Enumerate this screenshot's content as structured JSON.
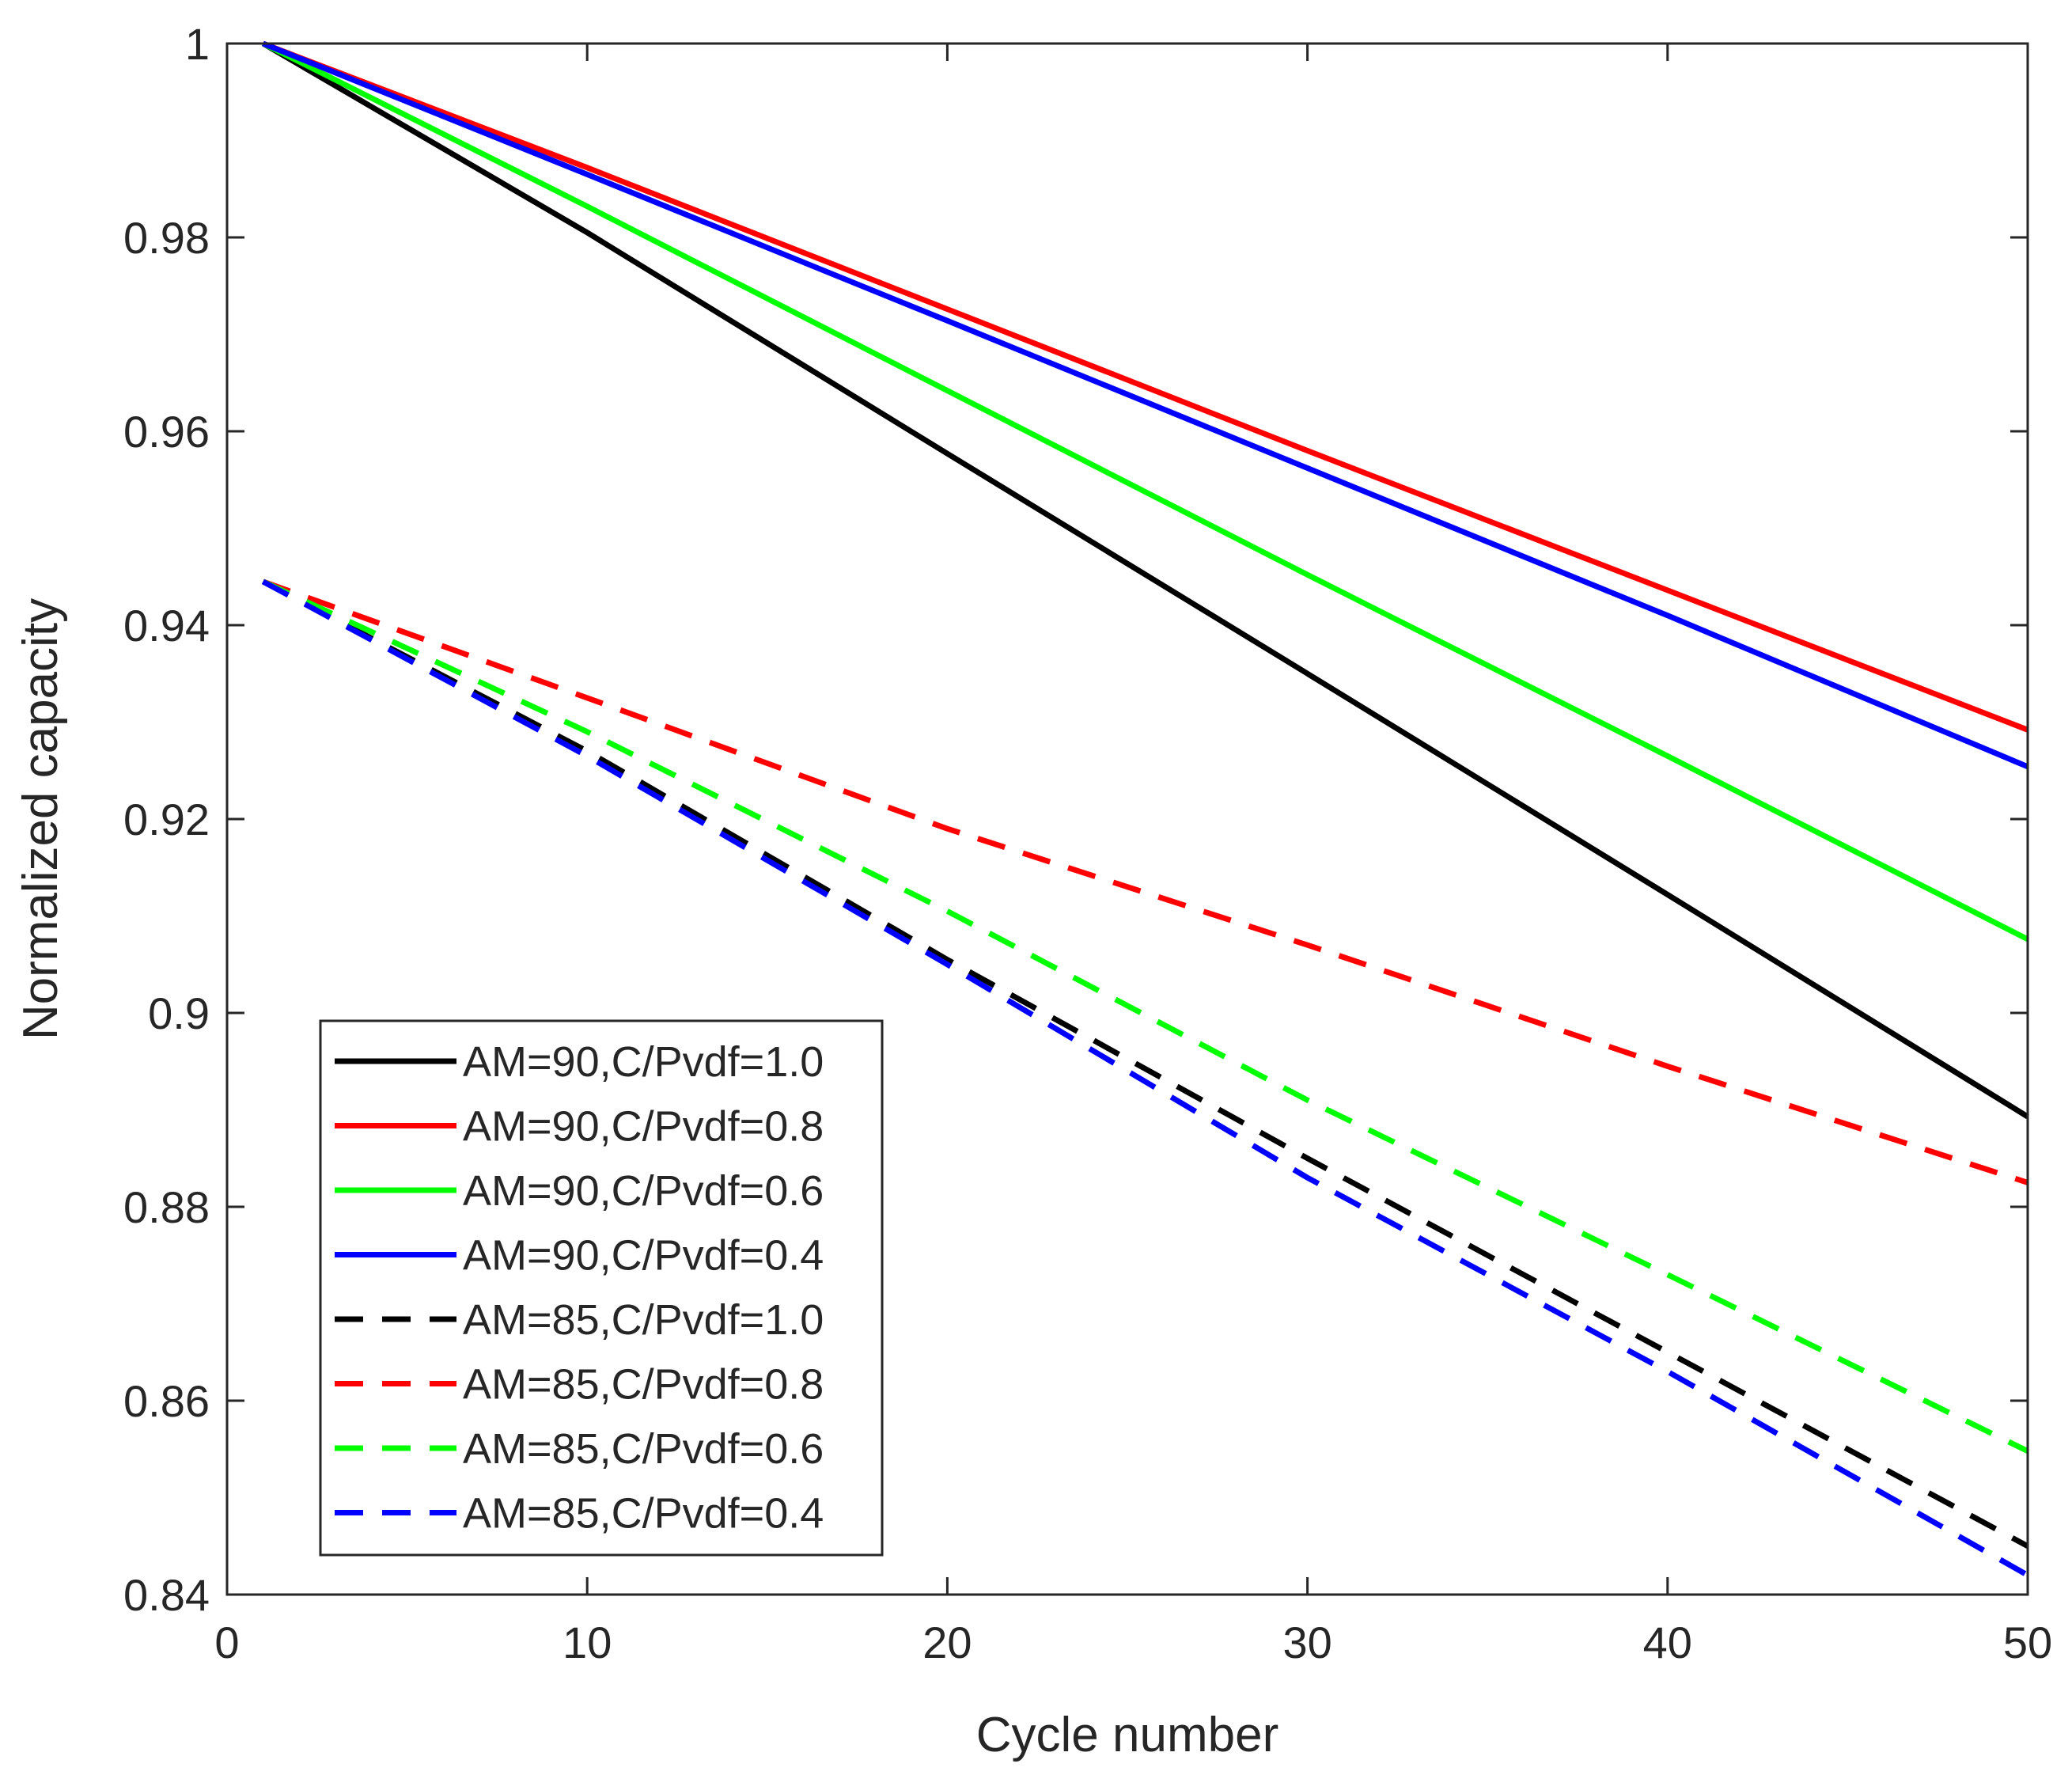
{
  "chart_data": {
    "type": "line",
    "title": "",
    "xlabel": "Cycle number",
    "ylabel": "Normalized capacity",
    "xlim": [
      0,
      50
    ],
    "ylim": [
      0.84,
      1.0
    ],
    "xticks": [
      0,
      10,
      20,
      30,
      40,
      50
    ],
    "xtick_labels": [
      "0",
      "10",
      "20",
      "30",
      "40",
      "50"
    ],
    "yticks": [
      0.84,
      0.86,
      0.88,
      0.9,
      0.92,
      0.94,
      0.96,
      0.98,
      1.0
    ],
    "ytick_labels": [
      "0.84",
      "0.86",
      "0.88",
      "0.9",
      "0.92",
      "0.94",
      "0.96",
      "0.98",
      "1"
    ],
    "grid": false,
    "legend_position": "bottom-left",
    "x": [
      1,
      10,
      20,
      30,
      40,
      50
    ],
    "series": [
      {
        "name": "AM=90,C/Pvdf=1.0",
        "color": "#000000",
        "style": "solid",
        "values": [
          1.0,
          0.9805,
          0.9577,
          0.935,
          0.9122,
          0.8893
        ]
      },
      {
        "name": "AM=90,C/Pvdf=0.8",
        "color": "#ff0000",
        "style": "solid",
        "values": [
          1.0,
          0.9872,
          0.9726,
          0.958,
          0.9436,
          0.9292
        ]
      },
      {
        "name": "AM=90,C/Pvdf=0.6",
        "color": "#00ff00",
        "style": "solid",
        "values": [
          1.0,
          0.9832,
          0.9642,
          0.9452,
          0.9265,
          0.9076
        ]
      },
      {
        "name": "AM=90,C/Pvdf=0.4",
        "color": "#0000ff",
        "style": "solid",
        "values": [
          1.0,
          0.9865,
          0.9714,
          0.9562,
          0.941,
          0.9254
        ]
      },
      {
        "name": "AM=85,C/Pvdf=1.0",
        "color": "#000000",
        "style": "dashed",
        "values": [
          0.9445,
          0.927,
          0.9055,
          0.885,
          0.865,
          0.845
        ]
      },
      {
        "name": "AM=85,C/Pvdf=0.8",
        "color": "#ff0000",
        "style": "dashed",
        "values": [
          0.9445,
          0.9325,
          0.919,
          0.907,
          0.8945,
          0.8825
        ]
      },
      {
        "name": "AM=85,C/Pvdf=0.6",
        "color": "#00ff00",
        "style": "dashed",
        "values": [
          0.9445,
          0.929,
          0.9105,
          0.891,
          0.873,
          0.8548
        ]
      },
      {
        "name": "AM=85,C/Pvdf=0.4",
        "color": "#0000ff",
        "style": "dashed",
        "values": [
          0.9445,
          0.9265,
          0.905,
          0.883,
          0.863,
          0.842
        ]
      }
    ]
  }
}
